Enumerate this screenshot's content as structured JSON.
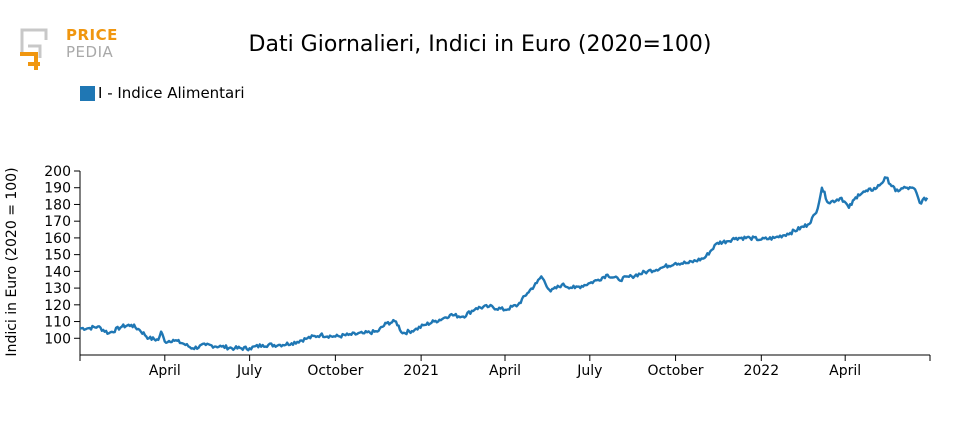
{
  "colors": {
    "series": "#1f77b4",
    "logo_orange": "#f0960f",
    "logo_grey": "#a9a9a9"
  },
  "logo": {
    "line1": "PRICE",
    "line2": "PEDIA"
  },
  "chart_data": {
    "type": "line",
    "title": "Dati Giornalieri, Indici in Euro (2020=100)",
    "ylabel": "Indici in Euro (2020 = 100)",
    "xlabel": "",
    "ylim": [
      90,
      200
    ],
    "yticks": [
      100,
      110,
      120,
      130,
      140,
      150,
      160,
      170,
      180,
      190,
      200
    ],
    "xlim": [
      "2020-01-01",
      "2022-07-01"
    ],
    "xticks": [
      {
        "date": "2020-01-01",
        "label": ""
      },
      {
        "date": "2020-04-01",
        "label": "April"
      },
      {
        "date": "2020-07-01",
        "label": "July"
      },
      {
        "date": "2020-10-01",
        "label": "October"
      },
      {
        "date": "2021-01-01",
        "label": "2021"
      },
      {
        "date": "2021-04-01",
        "label": "April"
      },
      {
        "date": "2021-07-01",
        "label": "July"
      },
      {
        "date": "2021-10-01",
        "label": "October"
      },
      {
        "date": "2022-01-01",
        "label": "2022"
      },
      {
        "date": "2022-04-01",
        "label": "April"
      },
      {
        "date": "2022-07-01",
        "label": ""
      }
    ],
    "legend": "top-left",
    "grid": false,
    "series": [
      {
        "name": "I - Indice Alimentari",
        "points": [
          [
            "2020-01-01",
            106
          ],
          [
            "2020-01-10",
            106
          ],
          [
            "2020-01-20",
            107
          ],
          [
            "2020-02-01",
            103
          ],
          [
            "2020-02-15",
            107
          ],
          [
            "2020-02-25",
            108
          ],
          [
            "2020-03-05",
            105
          ],
          [
            "2020-03-15",
            100
          ],
          [
            "2020-03-25",
            99
          ],
          [
            "2020-03-28",
            104
          ],
          [
            "2020-04-01",
            98
          ],
          [
            "2020-04-10",
            99
          ],
          [
            "2020-04-20",
            97
          ],
          [
            "2020-05-01",
            94
          ],
          [
            "2020-05-15",
            96
          ],
          [
            "2020-06-01",
            95
          ],
          [
            "2020-06-15",
            94
          ],
          [
            "2020-07-01",
            94
          ],
          [
            "2020-07-15",
            96
          ],
          [
            "2020-08-01",
            96
          ],
          [
            "2020-08-15",
            97
          ],
          [
            "2020-09-01",
            100
          ],
          [
            "2020-09-15",
            102
          ],
          [
            "2020-10-01",
            101
          ],
          [
            "2020-10-15",
            102
          ],
          [
            "2020-11-01",
            103
          ],
          [
            "2020-11-15",
            104
          ],
          [
            "2020-11-25",
            109
          ],
          [
            "2020-12-05",
            110
          ],
          [
            "2020-12-12",
            103
          ],
          [
            "2020-12-25",
            105
          ],
          [
            "2021-01-05",
            108
          ],
          [
            "2021-01-15",
            110
          ],
          [
            "2021-01-25",
            112
          ],
          [
            "2021-02-01",
            114
          ],
          [
            "2021-02-15",
            113
          ],
          [
            "2021-03-01",
            118
          ],
          [
            "2021-03-15",
            119
          ],
          [
            "2021-04-01",
            117
          ],
          [
            "2021-04-15",
            120
          ],
          [
            "2021-04-25",
            127
          ],
          [
            "2021-05-05",
            133
          ],
          [
            "2021-05-10",
            137
          ],
          [
            "2021-05-20",
            128
          ],
          [
            "2021-06-01",
            132
          ],
          [
            "2021-06-15",
            130
          ],
          [
            "2021-07-01",
            133
          ],
          [
            "2021-07-10",
            135
          ],
          [
            "2021-07-20",
            138
          ],
          [
            "2021-08-01",
            135
          ],
          [
            "2021-08-15",
            137
          ],
          [
            "2021-09-01",
            140
          ],
          [
            "2021-09-15",
            142
          ],
          [
            "2021-10-01",
            145
          ],
          [
            "2021-10-15",
            145
          ],
          [
            "2021-11-01",
            148
          ],
          [
            "2021-11-15",
            157
          ],
          [
            "2021-11-25",
            158
          ],
          [
            "2021-12-05",
            160
          ],
          [
            "2021-12-20",
            160
          ],
          [
            "2022-01-01",
            159
          ],
          [
            "2022-01-15",
            160
          ],
          [
            "2022-02-01",
            163
          ],
          [
            "2022-02-20",
            168
          ],
          [
            "2022-03-01",
            175
          ],
          [
            "2022-03-07",
            190
          ],
          [
            "2022-03-14",
            181
          ],
          [
            "2022-03-28",
            184
          ],
          [
            "2022-04-05",
            178
          ],
          [
            "2022-04-15",
            186
          ],
          [
            "2022-04-25",
            188
          ],
          [
            "2022-05-05",
            190
          ],
          [
            "2022-05-15",
            196
          ],
          [
            "2022-05-25",
            188
          ],
          [
            "2022-06-05",
            190
          ],
          [
            "2022-06-15",
            189
          ],
          [
            "2022-06-20",
            181
          ],
          [
            "2022-06-28",
            184
          ]
        ]
      }
    ]
  }
}
